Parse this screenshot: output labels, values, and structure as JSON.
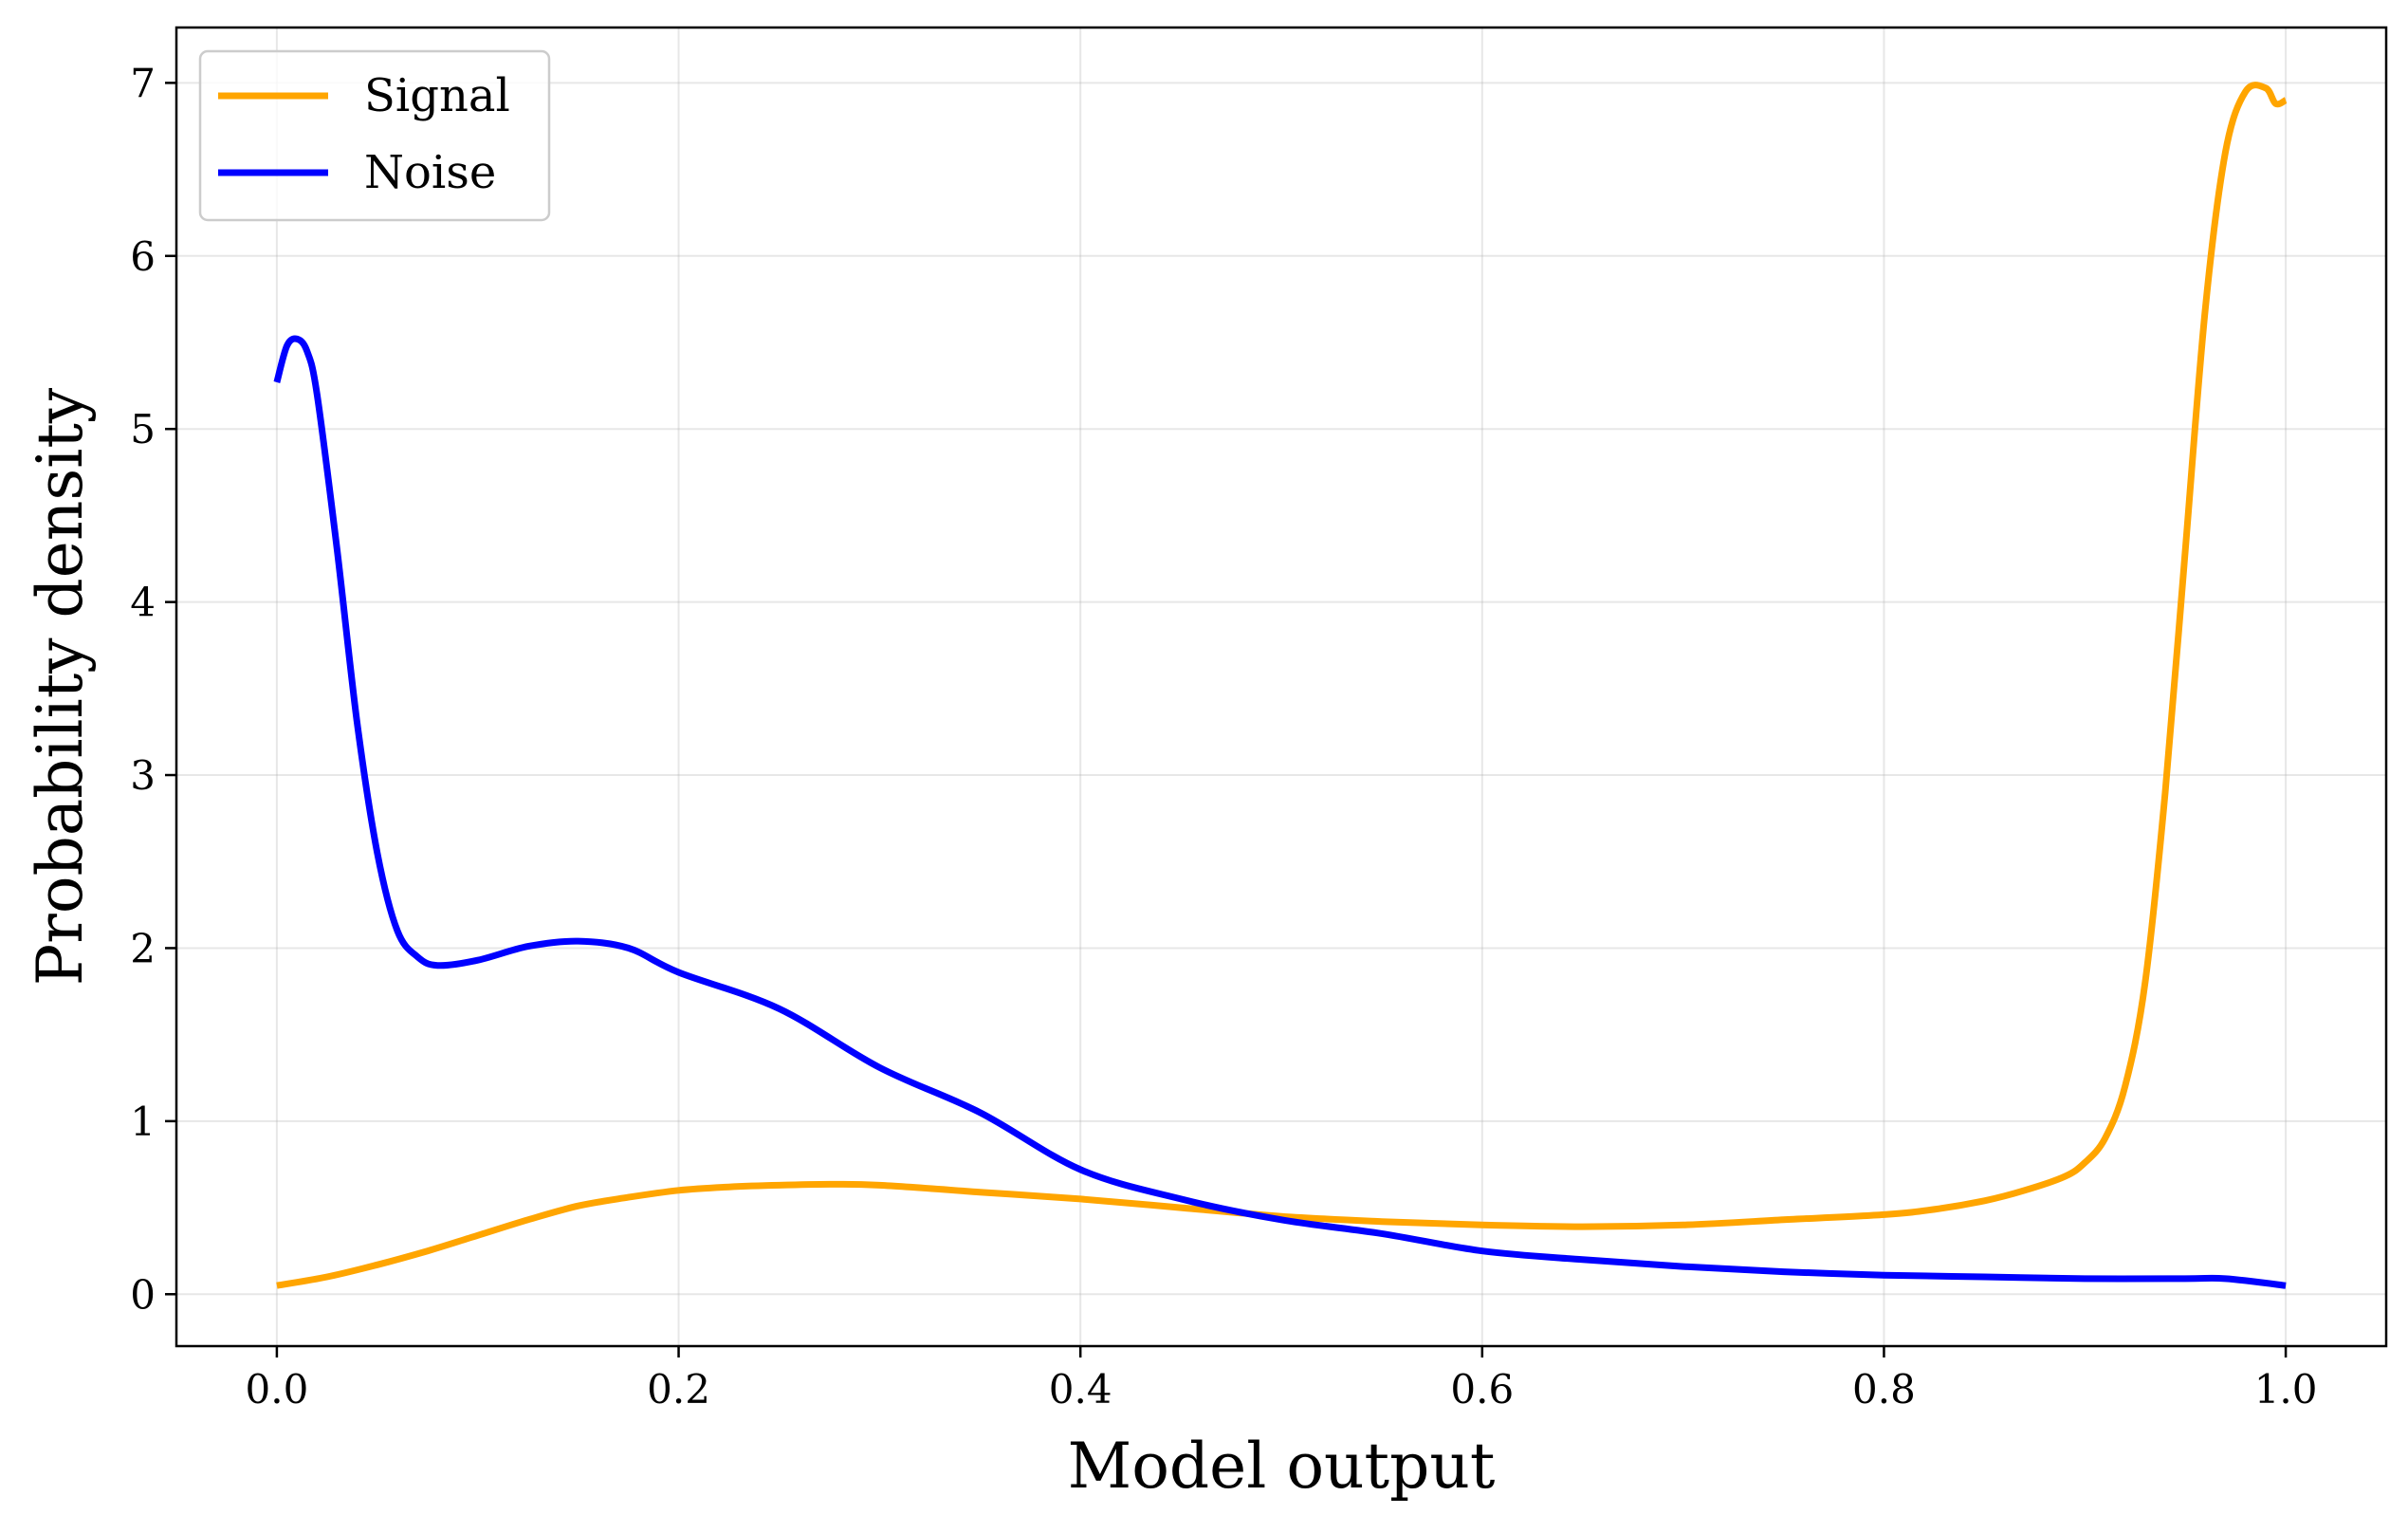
{
  "chart_data": {
    "type": "line",
    "title": "",
    "xlabel": "Model output",
    "ylabel": "Probability density",
    "xlim": [
      -0.05,
      1.05
    ],
    "ylim": [
      -0.3,
      7.32
    ],
    "xticks": [
      0.0,
      0.2,
      0.4,
      0.6,
      0.8,
      1.0
    ],
    "xtick_labels": [
      "0.0",
      "0.2",
      "0.4",
      "0.6",
      "0.8",
      "1.0"
    ],
    "yticks": [
      0,
      1,
      2,
      3,
      4,
      5,
      6,
      7
    ],
    "ytick_labels": [
      "0",
      "1",
      "2",
      "3",
      "4",
      "5",
      "6",
      "7"
    ],
    "grid": true,
    "legend_position": "top-left",
    "series": [
      {
        "name": "Signal",
        "color": "#FFA500",
        "x": [
          0.0,
          0.025,
          0.05,
          0.075,
          0.1,
          0.125,
          0.15,
          0.175,
          0.2,
          0.225,
          0.25,
          0.275,
          0.3,
          0.35,
          0.4,
          0.45,
          0.5,
          0.55,
          0.6,
          0.65,
          0.7,
          0.75,
          0.8,
          0.825,
          0.85,
          0.87,
          0.89,
          0.9,
          0.91,
          0.92,
          0.93,
          0.94,
          0.95,
          0.96,
          0.97,
          0.98,
          0.99,
          0.995,
          1.0
        ],
        "y": [
          0.05,
          0.1,
          0.17,
          0.25,
          0.34,
          0.43,
          0.51,
          0.56,
          0.6,
          0.62,
          0.63,
          0.635,
          0.63,
          0.59,
          0.55,
          0.5,
          0.45,
          0.42,
          0.4,
          0.39,
          0.4,
          0.43,
          0.46,
          0.49,
          0.54,
          0.6,
          0.68,
          0.76,
          0.9,
          1.2,
          1.8,
          2.9,
          4.3,
          5.7,
          6.6,
          6.95,
          6.97,
          6.88,
          6.9
        ]
      },
      {
        "name": "Noise",
        "color": "#0000FF",
        "x": [
          0.0,
          0.005,
          0.01,
          0.015,
          0.02,
          0.03,
          0.04,
          0.05,
          0.06,
          0.07,
          0.08,
          0.1,
          0.125,
          0.15,
          0.175,
          0.2,
          0.25,
          0.3,
          0.35,
          0.4,
          0.45,
          0.5,
          0.55,
          0.6,
          0.65,
          0.7,
          0.75,
          0.8,
          0.85,
          0.9,
          0.95,
          0.97,
          1.0
        ],
        "y": [
          5.27,
          5.48,
          5.52,
          5.45,
          5.2,
          4.3,
          3.3,
          2.55,
          2.1,
          1.95,
          1.9,
          1.93,
          2.01,
          2.04,
          2.0,
          1.86,
          1.65,
          1.31,
          1.05,
          0.72,
          0.55,
          0.43,
          0.35,
          0.25,
          0.2,
          0.16,
          0.13,
          0.11,
          0.1,
          0.09,
          0.09,
          0.09,
          0.05
        ]
      }
    ]
  }
}
